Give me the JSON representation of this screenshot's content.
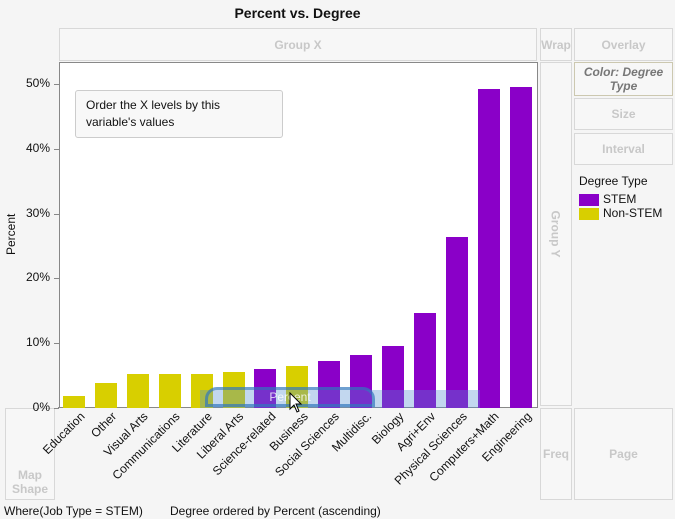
{
  "title": "Percent vs. Degree",
  "zones": {
    "group_x": "Group X",
    "wrap": "Wrap",
    "overlay": "Overlay",
    "color": "Color: Degree Type",
    "size": "Size",
    "interval": "Interval",
    "group_y": "Group Y",
    "map_shape": "Map Shape",
    "freq": "Freq",
    "page": "Page"
  },
  "legend": {
    "title": "Degree Type",
    "items": [
      {
        "label": "STEM",
        "color": "#8a00c8"
      },
      {
        "label": "Non-STEM",
        "color": "#d8cf00"
      }
    ]
  },
  "drag_label": "Percent",
  "tooltip": "Order the X levels by this variable's values",
  "where": "Where(Job Type = STEM)",
  "chart_data": {
    "type": "bar",
    "ylabel": "Percent",
    "xlabel": "Degree ordered by Percent (ascending)",
    "ylim": [
      0,
      53
    ],
    "yticks": [
      "0%",
      "10%",
      "20%",
      "30%",
      "40%",
      "50%"
    ],
    "categories": [
      "Education",
      "Other",
      "Visual Arts",
      "Communications",
      "Literature",
      "Liberal Arts",
      "Science-related",
      "Business",
      "Social Sciences",
      "Multidisc.",
      "Biology",
      "Agri+Env",
      "Physical Sciences",
      "Computers+Math",
      "Engineering"
    ],
    "values": [
      1.8,
      3.9,
      5.2,
      5.3,
      5.3,
      5.5,
      6.0,
      6.5,
      7.2,
      8.2,
      9.5,
      14.7,
      26.4,
      49.3,
      49.5
    ],
    "groups": [
      "Non-STEM",
      "Non-STEM",
      "Non-STEM",
      "Non-STEM",
      "Non-STEM",
      "Non-STEM",
      "STEM",
      "Non-STEM",
      "STEM",
      "STEM",
      "STEM",
      "STEM",
      "STEM",
      "STEM",
      "STEM"
    ]
  }
}
